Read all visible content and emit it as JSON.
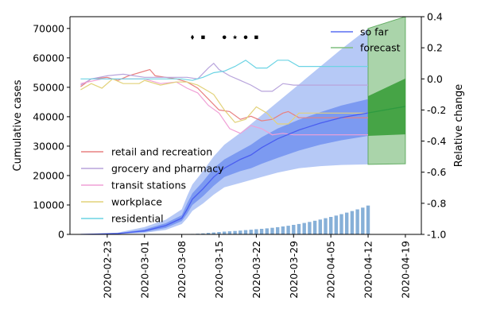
{
  "chart_data": {
    "type": "line",
    "title": "",
    "x_axis": {
      "type": "date",
      "range": [
        "2020-02-16",
        "2020-04-22"
      ],
      "ticks": [
        "2020-02-23",
        "2020-03-01",
        "2020-03-08",
        "2020-03-15",
        "2020-03-22",
        "2020-03-29",
        "2020-04-05",
        "2020-04-12",
        "2020-04-19"
      ]
    },
    "y_left": {
      "label": "Cumulative cases",
      "range": [
        0,
        74000
      ],
      "ticks": [
        0,
        10000,
        20000,
        30000,
        40000,
        50000,
        60000,
        70000
      ]
    },
    "y_right": {
      "label": "Relative change",
      "range": [
        -1.0,
        0.4
      ],
      "ticks": [
        -1.0,
        -0.8,
        -0.6,
        -0.4,
        -0.2,
        0.0,
        0.2,
        0.4
      ]
    },
    "legend_upper": {
      "placement": "top-right",
      "items": [
        {
          "key": "so_far",
          "label": "so far",
          "color": "#5a6ef2"
        },
        {
          "key": "forecast",
          "label": "forecast",
          "color": "#7fbf7f"
        }
      ]
    },
    "legend_lower": {
      "placement": "lower-left",
      "items": [
        {
          "key": "retail",
          "label": "retail and recreation",
          "color": "#e88080"
        },
        {
          "key": "grocery",
          "label": "grocery and pharmacy",
          "color": "#b8a4dc"
        },
        {
          "key": "transit",
          "label": "transit stations",
          "color": "#f0a0d6"
        },
        {
          "key": "workplace",
          "label": "workplace",
          "color": "#e2d27a"
        },
        {
          "key": "residential",
          "label": "residential",
          "color": "#6cd4e4"
        }
      ]
    },
    "cumulative_so_far": {
      "color": "#4a5ef0",
      "band_inner_color": "#6e8ff0",
      "band_outer_color": "#a9c0f4",
      "points": [
        {
          "x": "2020-02-18",
          "y": 0,
          "inner": [
            0,
            0
          ],
          "outer": [
            0,
            0
          ]
        },
        {
          "x": "2020-02-25",
          "y": 300,
          "inner": [
            200,
            400
          ],
          "outer": [
            100,
            600
          ]
        },
        {
          "x": "2020-03-01",
          "y": 1200,
          "inner": [
            800,
            1700
          ],
          "outer": [
            500,
            2500
          ]
        },
        {
          "x": "2020-03-05",
          "y": 3000,
          "inner": [
            2200,
            3800
          ],
          "outer": [
            1500,
            5000
          ]
        },
        {
          "x": "2020-03-08",
          "y": 5500,
          "inner": [
            4500,
            6500
          ],
          "outer": [
            3500,
            8500
          ]
        },
        {
          "x": "2020-03-09",
          "y": 8500,
          "inner": [
            7000,
            10500
          ],
          "outer": [
            5500,
            13000
          ]
        },
        {
          "x": "2020-03-10",
          "y": 12000,
          "inner": [
            10000,
            14000
          ],
          "outer": [
            8000,
            17000
          ]
        },
        {
          "x": "2020-03-12",
          "y": 15500,
          "inner": [
            13000,
            18000
          ],
          "outer": [
            10500,
            21500
          ]
        },
        {
          "x": "2020-03-14",
          "y": 19500,
          "inner": [
            16500,
            22500
          ],
          "outer": [
            13500,
            26500
          ]
        },
        {
          "x": "2020-03-16",
          "y": 22500,
          "inner": [
            19500,
            25500
          ],
          "outer": [
            16000,
            30500
          ]
        },
        {
          "x": "2020-03-19",
          "y": 25500,
          "inner": [
            21500,
            28500
          ],
          "outer": [
            17500,
            34500
          ]
        },
        {
          "x": "2020-03-21",
          "y": 27000,
          "inner": [
            22500,
            30500
          ],
          "outer": [
            18500,
            37500
          ]
        },
        {
          "x": "2020-03-23",
          "y": 29500,
          "inner": [
            24000,
            33000
          ],
          "outer": [
            19500,
            40500
          ]
        },
        {
          "x": "2020-03-26",
          "y": 32500,
          "inner": [
            26000,
            36000
          ],
          "outer": [
            21000,
            45000
          ]
        },
        {
          "x": "2020-03-30",
          "y": 35500,
          "inner": [
            28500,
            39000
          ],
          "outer": [
            22500,
            51000
          ]
        },
        {
          "x": "2020-04-03",
          "y": 37800,
          "inner": [
            30500,
            41500
          ],
          "outer": [
            23200,
            57000
          ]
        },
        {
          "x": "2020-04-07",
          "y": 39700,
          "inner": [
            32000,
            43800
          ],
          "outer": [
            23600,
            63000
          ]
        },
        {
          "x": "2020-04-12",
          "y": 41300,
          "inner": [
            33500,
            46000
          ],
          "outer": [
            23800,
            70000
          ]
        }
      ]
    },
    "forecast": {
      "color": "#2e9a40",
      "band_inner_color": "#3b9f3b",
      "band_outer_color": "#a6d2a6",
      "points": [
        {
          "x": "2020-04-12",
          "y": 41300,
          "inner": [
            33500,
            47000
          ],
          "outer": [
            23800,
            70000
          ]
        },
        {
          "x": "2020-04-19",
          "y": 43500,
          "inner": [
            34000,
            53000
          ],
          "outer": [
            24000,
            74000
          ]
        }
      ]
    },
    "daily_cases_bars": {
      "color": "#87b0d8",
      "points": [
        {
          "x": "2020-03-10",
          "y": 150
        },
        {
          "x": "2020-03-11",
          "y": 250
        },
        {
          "x": "2020-03-12",
          "y": 350
        },
        {
          "x": "2020-03-13",
          "y": 500
        },
        {
          "x": "2020-03-14",
          "y": 650
        },
        {
          "x": "2020-03-15",
          "y": 800
        },
        {
          "x": "2020-03-16",
          "y": 950
        },
        {
          "x": "2020-03-17",
          "y": 1050
        },
        {
          "x": "2020-03-18",
          "y": 1150
        },
        {
          "x": "2020-03-19",
          "y": 1300
        },
        {
          "x": "2020-03-20",
          "y": 1450
        },
        {
          "x": "2020-03-21",
          "y": 1600
        },
        {
          "x": "2020-03-22",
          "y": 1750
        },
        {
          "x": "2020-03-23",
          "y": 1900
        },
        {
          "x": "2020-03-24",
          "y": 2050
        },
        {
          "x": "2020-03-25",
          "y": 2250
        },
        {
          "x": "2020-03-26",
          "y": 2450
        },
        {
          "x": "2020-03-27",
          "y": 2700
        },
        {
          "x": "2020-03-28",
          "y": 2950
        },
        {
          "x": "2020-03-29",
          "y": 3250
        },
        {
          "x": "2020-03-30",
          "y": 3550
        },
        {
          "x": "2020-03-31",
          "y": 3900
        },
        {
          "x": "2020-04-01",
          "y": 4250
        },
        {
          "x": "2020-04-02",
          "y": 4650
        },
        {
          "x": "2020-04-03",
          "y": 5050
        },
        {
          "x": "2020-04-04",
          "y": 5500
        },
        {
          "x": "2020-04-05",
          "y": 5950
        },
        {
          "x": "2020-04-06",
          "y": 6400
        },
        {
          "x": "2020-04-07",
          "y": 6900
        },
        {
          "x": "2020-04-08",
          "y": 7400
        },
        {
          "x": "2020-04-09",
          "y": 7950
        },
        {
          "x": "2020-04-10",
          "y": 8500
        },
        {
          "x": "2020-04-11",
          "y": 9100
        },
        {
          "x": "2020-04-12",
          "y": 9800
        }
      ]
    },
    "mobility_series": [
      {
        "key": "retail",
        "name": "retail and recreation",
        "color": "#e88080",
        "points": [
          [
            "2020-02-18",
            -0.05
          ],
          [
            "2020-02-20",
            0.0
          ],
          [
            "2020-02-23",
            0.01
          ],
          [
            "2020-02-25",
            -0.01
          ],
          [
            "2020-02-27",
            0.02
          ],
          [
            "2020-03-01",
            0.05
          ],
          [
            "2020-03-02",
            0.06
          ],
          [
            "2020-03-03",
            0.02
          ],
          [
            "2020-03-05",
            0.01
          ],
          [
            "2020-03-07",
            0.0
          ],
          [
            "2020-03-09",
            -0.02
          ],
          [
            "2020-03-11",
            -0.06
          ],
          [
            "2020-03-13",
            -0.13
          ],
          [
            "2020-03-15",
            -0.2
          ],
          [
            "2020-03-17",
            -0.21
          ],
          [
            "2020-03-19",
            -0.26
          ],
          [
            "2020-03-21",
            -0.24
          ],
          [
            "2020-03-23",
            -0.27
          ],
          [
            "2020-03-25",
            -0.26
          ],
          [
            "2020-03-27",
            -0.22
          ],
          [
            "2020-03-28",
            -0.21
          ],
          [
            "2020-03-30",
            -0.25
          ],
          [
            "2020-04-05",
            -0.25
          ],
          [
            "2020-04-12",
            -0.25
          ]
        ]
      },
      {
        "key": "grocery",
        "name": "grocery and pharmacy",
        "color": "#b8a4dc",
        "points": [
          [
            "2020-02-18",
            -0.04
          ],
          [
            "2020-02-20",
            0.0
          ],
          [
            "2020-02-23",
            0.02
          ],
          [
            "2020-02-26",
            0.03
          ],
          [
            "2020-03-01",
            0.01
          ],
          [
            "2020-03-04",
            0.01
          ],
          [
            "2020-03-07",
            0.01
          ],
          [
            "2020-03-09",
            0.01
          ],
          [
            "2020-03-11",
            0.0
          ],
          [
            "2020-03-13",
            0.07
          ],
          [
            "2020-03-14",
            0.1
          ],
          [
            "2020-03-15",
            0.06
          ],
          [
            "2020-03-17",
            0.02
          ],
          [
            "2020-03-19",
            -0.01
          ],
          [
            "2020-03-21",
            -0.04
          ],
          [
            "2020-03-23",
            -0.08
          ],
          [
            "2020-03-25",
            -0.08
          ],
          [
            "2020-03-27",
            -0.03
          ],
          [
            "2020-03-29",
            -0.04
          ],
          [
            "2020-04-05",
            -0.04
          ],
          [
            "2020-04-12",
            -0.04
          ]
        ]
      },
      {
        "key": "transit",
        "name": "transit stations",
        "color": "#f0a0d6",
        "points": [
          [
            "2020-02-18",
            -0.03
          ],
          [
            "2020-02-22",
            0.0
          ],
          [
            "2020-02-25",
            0.0
          ],
          [
            "2020-03-01",
            0.0
          ],
          [
            "2020-03-04",
            -0.03
          ],
          [
            "2020-03-07",
            -0.02
          ],
          [
            "2020-03-09",
            -0.06
          ],
          [
            "2020-03-11",
            -0.09
          ],
          [
            "2020-03-13",
            -0.17
          ],
          [
            "2020-03-15",
            -0.22
          ],
          [
            "2020-03-17",
            -0.32
          ],
          [
            "2020-03-19",
            -0.35
          ],
          [
            "2020-03-21",
            -0.3
          ],
          [
            "2020-03-23",
            -0.32
          ],
          [
            "2020-03-25",
            -0.36
          ],
          [
            "2020-03-27",
            -0.35
          ],
          [
            "2020-03-29",
            -0.36
          ],
          [
            "2020-04-05",
            -0.36
          ],
          [
            "2020-04-12",
            -0.36
          ]
        ]
      },
      {
        "key": "workplace",
        "name": "workplace",
        "color": "#e2d27a",
        "points": [
          [
            "2020-02-18",
            -0.07
          ],
          [
            "2020-02-20",
            -0.03
          ],
          [
            "2020-02-22",
            -0.06
          ],
          [
            "2020-02-24",
            0.0
          ],
          [
            "2020-02-26",
            -0.03
          ],
          [
            "2020-02-29",
            -0.03
          ],
          [
            "2020-03-01",
            -0.01
          ],
          [
            "2020-03-04",
            -0.04
          ],
          [
            "2020-03-07",
            -0.02
          ],
          [
            "2020-03-09",
            -0.02
          ],
          [
            "2020-03-11",
            -0.04
          ],
          [
            "2020-03-13",
            -0.08
          ],
          [
            "2020-03-14",
            -0.1
          ],
          [
            "2020-03-16",
            -0.2
          ],
          [
            "2020-03-18",
            -0.28
          ],
          [
            "2020-03-20",
            -0.26
          ],
          [
            "2020-03-22",
            -0.18
          ],
          [
            "2020-03-24",
            -0.22
          ],
          [
            "2020-03-26",
            -0.29
          ],
          [
            "2020-03-28",
            -0.29
          ],
          [
            "2020-03-30",
            -0.22
          ],
          [
            "2020-04-05",
            -0.22
          ],
          [
            "2020-04-12",
            -0.22
          ]
        ]
      },
      {
        "key": "residential",
        "name": "residential",
        "color": "#6cd4e4",
        "points": [
          [
            "2020-02-18",
            0.0
          ],
          [
            "2020-02-22",
            0.0
          ],
          [
            "2020-02-26",
            0.0
          ],
          [
            "2020-03-01",
            0.0
          ],
          [
            "2020-03-05",
            0.0
          ],
          [
            "2020-03-08",
            0.0
          ],
          [
            "2020-03-10",
            -0.01
          ],
          [
            "2020-03-12",
            0.01
          ],
          [
            "2020-03-14",
            0.04
          ],
          [
            "2020-03-16",
            0.05
          ],
          [
            "2020-03-18",
            0.08
          ],
          [
            "2020-03-20",
            0.12
          ],
          [
            "2020-03-22",
            0.07
          ],
          [
            "2020-03-24",
            0.07
          ],
          [
            "2020-03-26",
            0.12
          ],
          [
            "2020-03-28",
            0.12
          ],
          [
            "2020-03-30",
            0.08
          ],
          [
            "2020-04-05",
            0.08
          ],
          [
            "2020-04-12",
            0.08
          ]
        ]
      }
    ],
    "event_markers": [
      {
        "x": "2020-03-10",
        "y": 67000,
        "shape": "diamond"
      },
      {
        "x": "2020-03-12",
        "y": 67000,
        "shape": "square"
      },
      {
        "x": "2020-03-16",
        "y": 67000,
        "shape": "circle"
      },
      {
        "x": "2020-03-18",
        "y": 67000,
        "shape": "star"
      },
      {
        "x": "2020-03-20",
        "y": 67000,
        "shape": "circle"
      },
      {
        "x": "2020-03-22",
        "y": 67000,
        "shape": "square"
      }
    ]
  }
}
